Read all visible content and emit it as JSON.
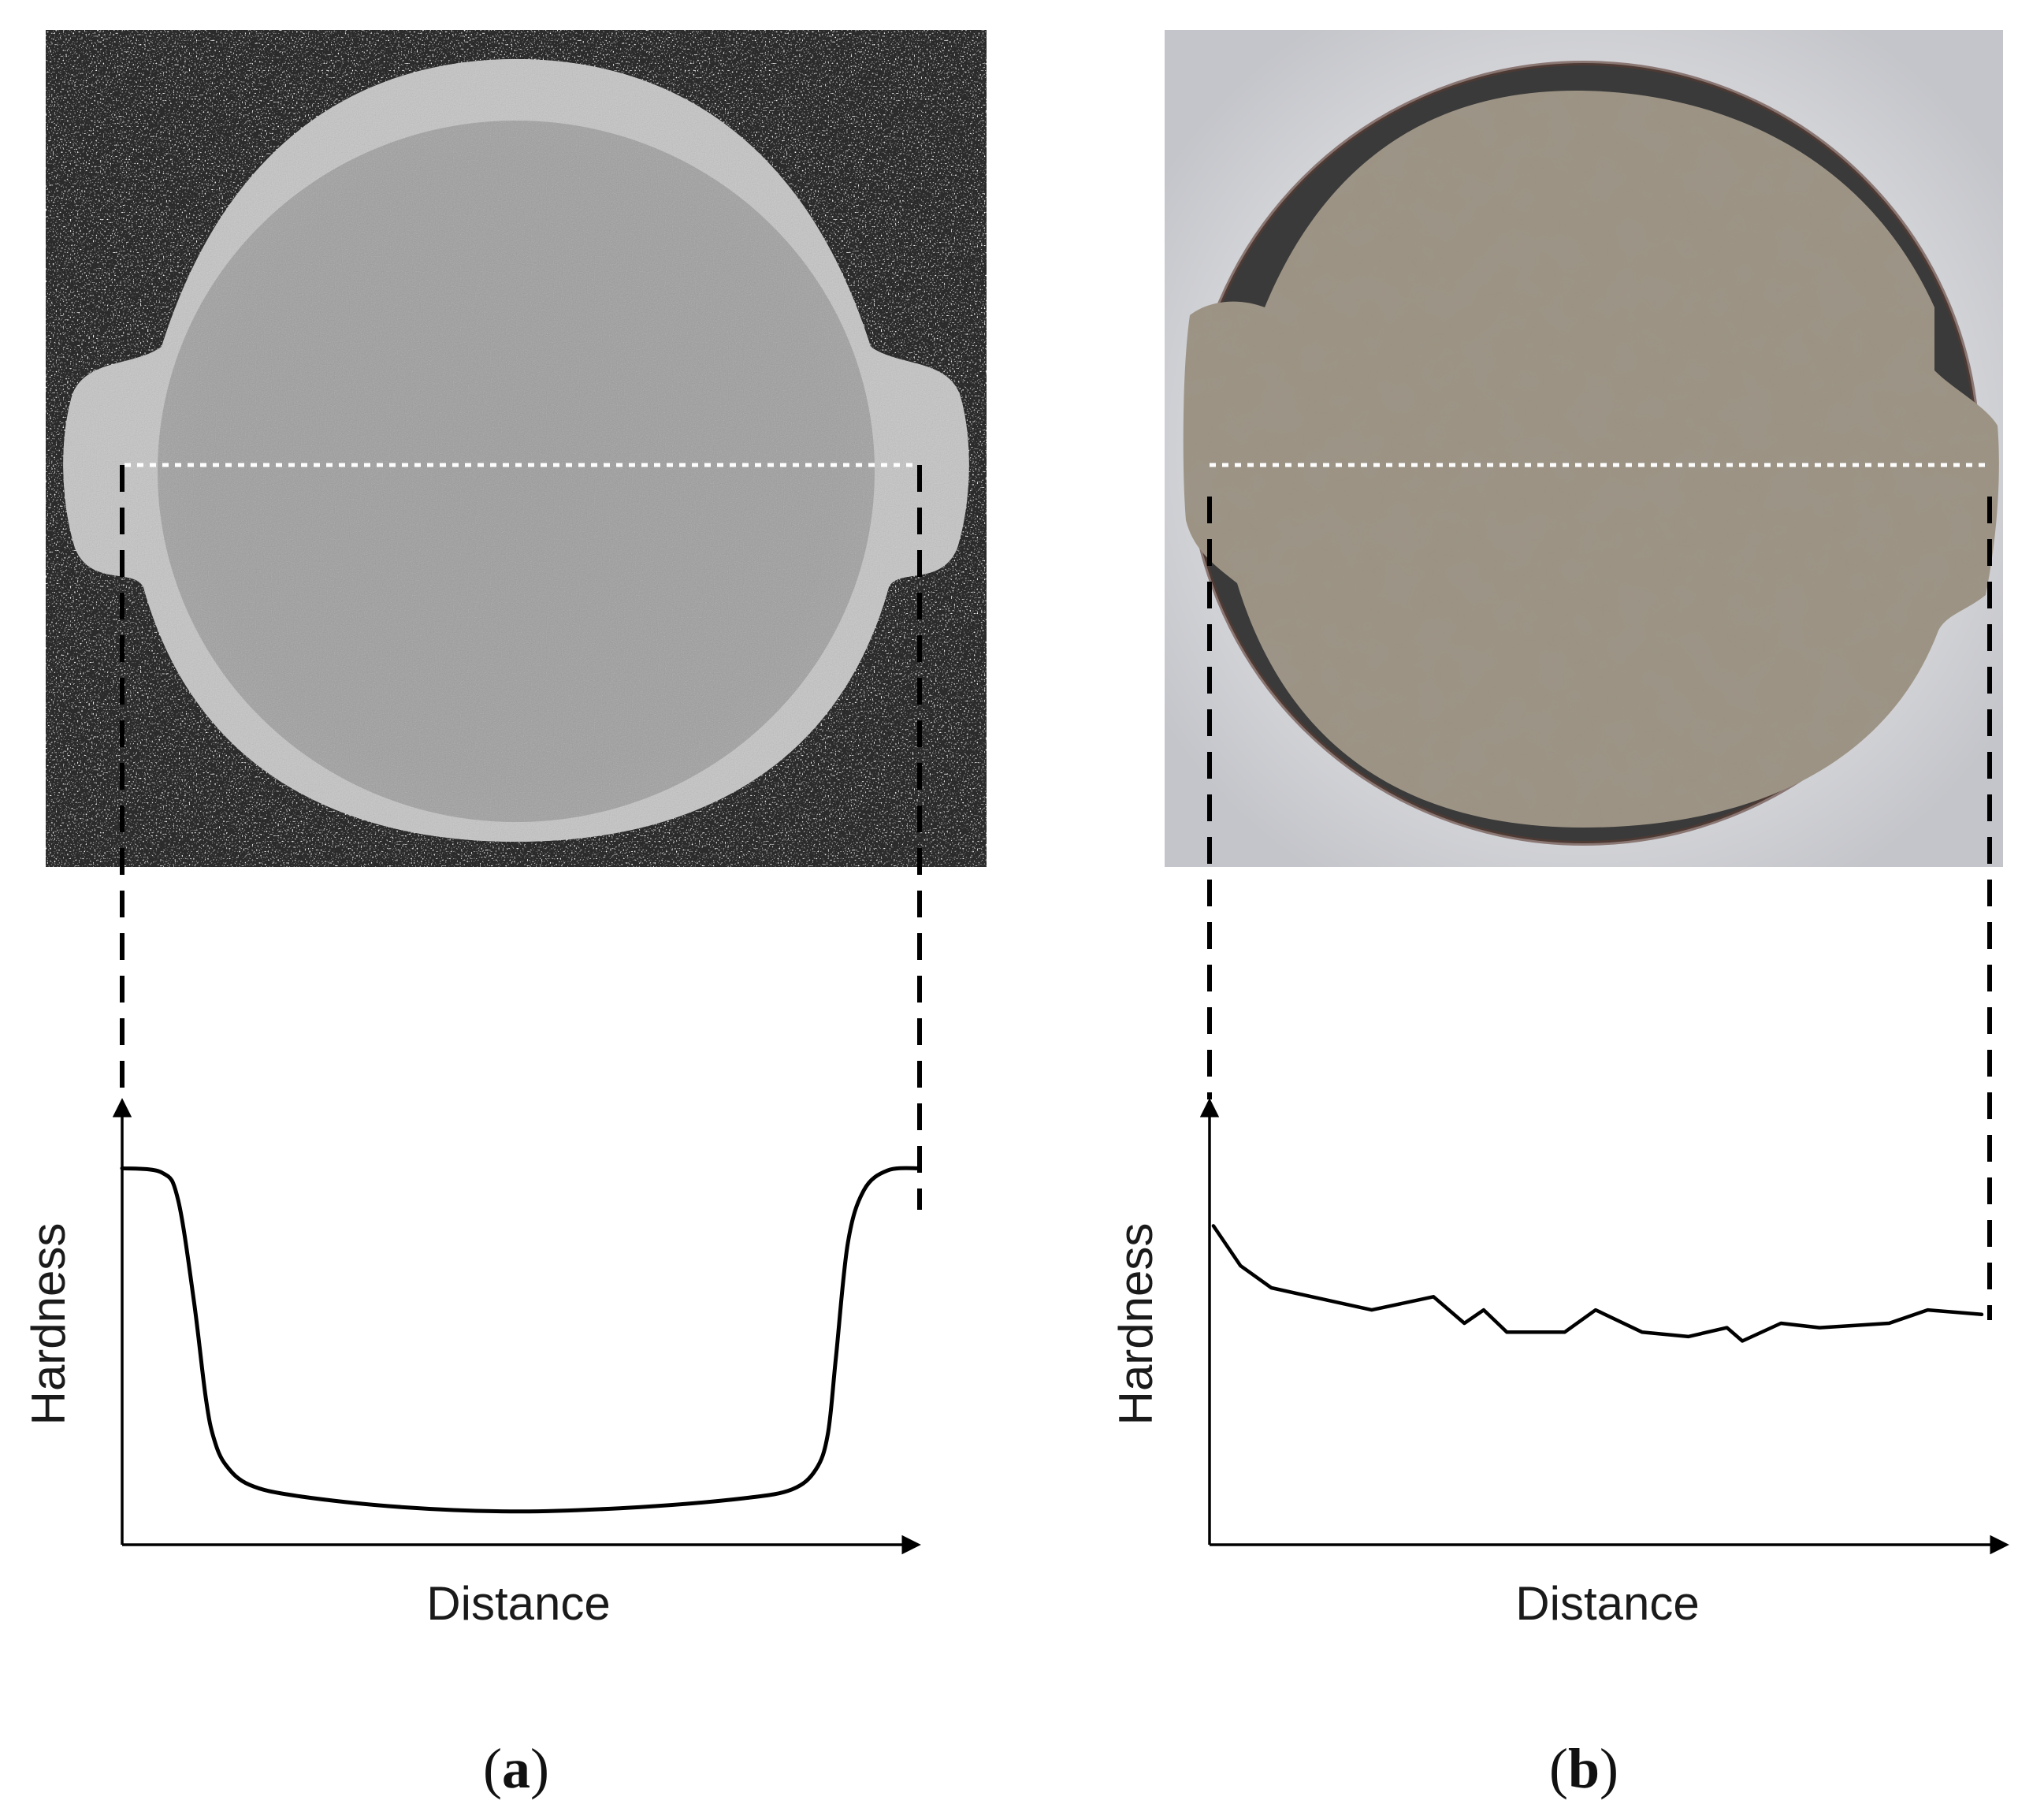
{
  "colors": {
    "background": "#ffffff",
    "ink": "#000000",
    "sample_a_mount": "#2b2b2b",
    "sample_a_disc": "#a6a6a6",
    "sample_a_rim": "#c9c9c9",
    "sample_b_background": "#d8d9dc",
    "sample_b_mount": "#3a3a3a",
    "sample_b_disc": "#9c9384"
  },
  "chart_data": [
    {
      "type": "line",
      "panel_label": "(a)",
      "panel_letter": "a",
      "xlabel": "Distance",
      "ylabel": "Hardness",
      "x_ticks_labeled": false,
      "y_ticks_labeled": false,
      "grid": false,
      "xlim": [
        0,
        1
      ],
      "ylim": [
        0,
        1
      ],
      "series": [
        {
          "x": [
            0.0,
            0.05,
            0.07,
            0.09,
            0.105,
            0.115,
            0.13,
            0.16,
            0.22,
            0.35,
            0.5,
            0.65,
            0.78,
            0.84,
            0.87,
            0.885,
            0.895,
            0.91,
            0.93,
            0.96,
            1.0
          ],
          "y": [
            0.85,
            0.84,
            0.78,
            0.55,
            0.33,
            0.24,
            0.18,
            0.135,
            0.11,
            0.085,
            0.075,
            0.085,
            0.105,
            0.125,
            0.17,
            0.25,
            0.42,
            0.68,
            0.8,
            0.845,
            0.85
          ]
        }
      ]
    },
    {
      "type": "line",
      "panel_label": "(b)",
      "panel_letter": "b",
      "xlabel": "Distance",
      "ylabel": "Hardness",
      "x_ticks_labeled": false,
      "y_ticks_labeled": false,
      "grid": false,
      "xlim": [
        0,
        1
      ],
      "ylim": [
        0,
        1
      ],
      "series": [
        {
          "x": [
            0.005,
            0.04,
            0.08,
            0.21,
            0.29,
            0.33,
            0.355,
            0.385,
            0.46,
            0.5,
            0.56,
            0.62,
            0.67,
            0.69,
            0.74,
            0.79,
            0.88,
            0.93,
            1.0
          ],
          "y": [
            0.72,
            0.63,
            0.58,
            0.53,
            0.56,
            0.5,
            0.53,
            0.48,
            0.48,
            0.53,
            0.48,
            0.47,
            0.49,
            0.46,
            0.5,
            0.49,
            0.5,
            0.53,
            0.52
          ]
        }
      ]
    }
  ]
}
